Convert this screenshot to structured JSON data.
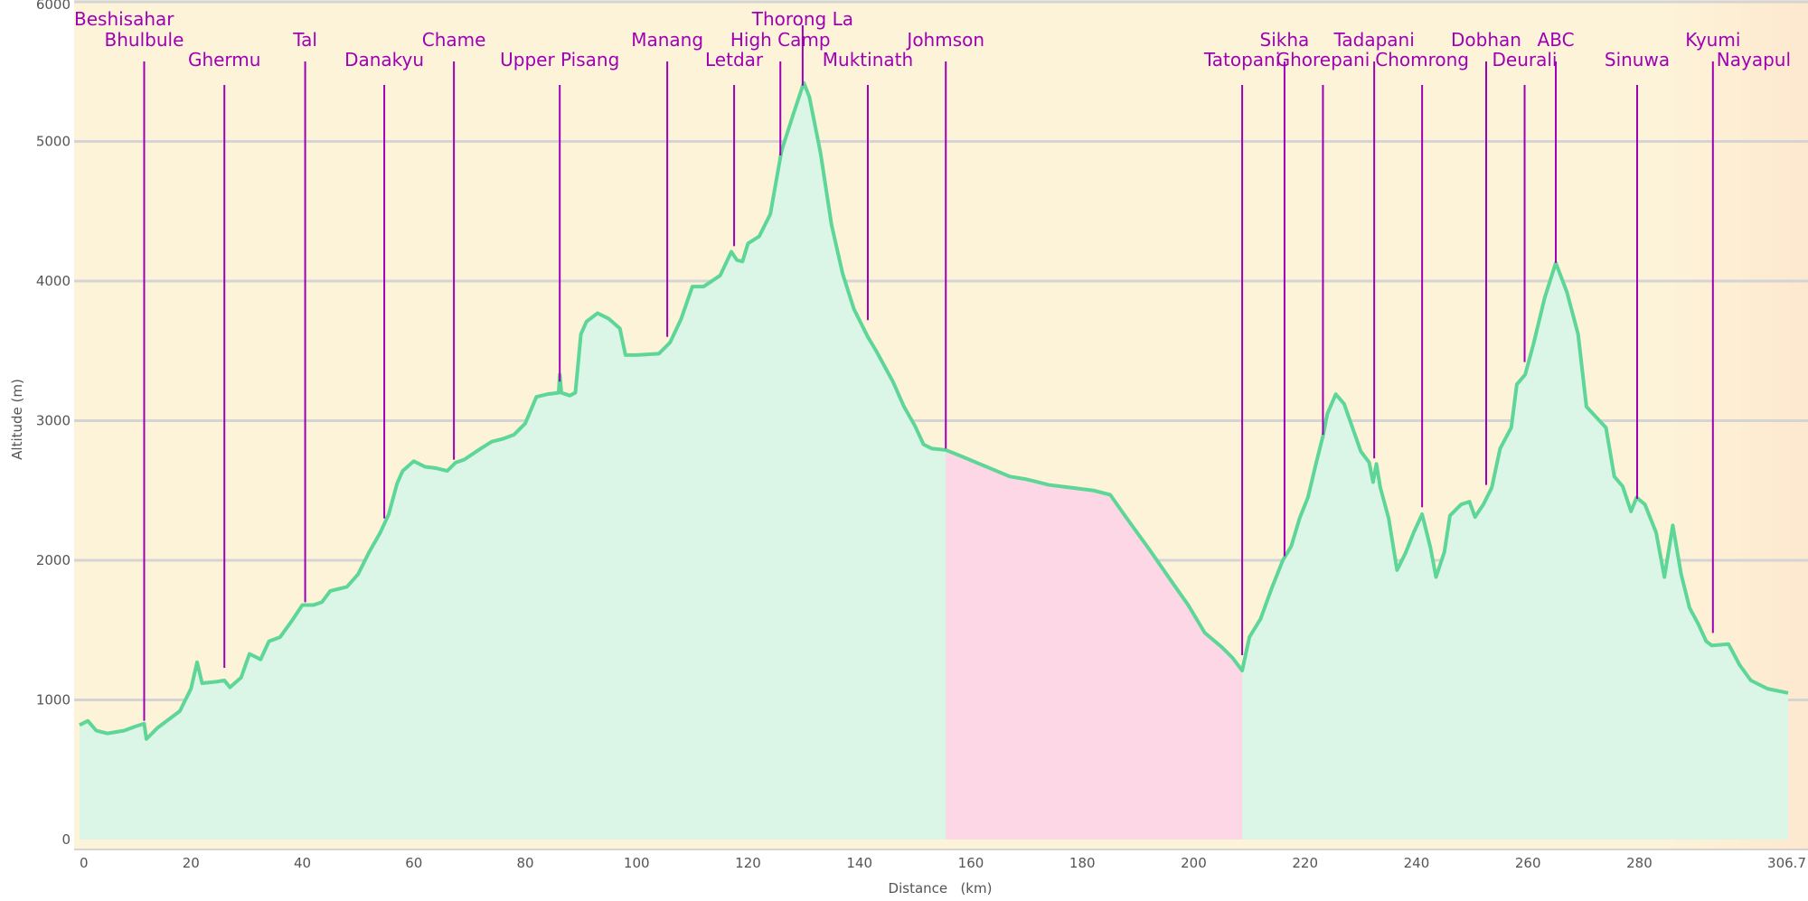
{
  "chart_data": {
    "type": "area",
    "title": "",
    "xlabel": "Distance   (km)",
    "ylabel": "Altitude (m)",
    "xlim": [
      0,
      306.7
    ],
    "ylim": [
      0,
      6000
    ],
    "x_ticks": [
      "0",
      "20",
      "40",
      "60",
      "80",
      "100",
      "120",
      "140",
      "160",
      "180",
      "200",
      "220",
      "240",
      "260",
      "280",
      "306.7"
    ],
    "x_tick_values": [
      0,
      20,
      40,
      60,
      80,
      100,
      120,
      140,
      160,
      180,
      200,
      220,
      240,
      260,
      280,
      306.7
    ],
    "y_ticks": [
      "0",
      "1000",
      "2000",
      "3000",
      "4000",
      "5000",
      "6000"
    ],
    "y_tick_values": [
      0,
      1000,
      2000,
      3000,
      4000,
      5000,
      6000
    ],
    "grid": true,
    "colors": {
      "background": "#fdf3d8",
      "background_end": "#fde8cf",
      "profile_line": "#5dd698",
      "profile_fill": "#dbf6e7",
      "highlight_fill": "#fdd7e6",
      "waypoint": "#a000b4",
      "grid": "#d4d4d4",
      "tick_text": "#555555"
    },
    "highlight_range": [
      155.5,
      208.7
    ],
    "profile": [
      [
        0,
        820
      ],
      [
        1.5,
        850
      ],
      [
        3,
        780
      ],
      [
        5,
        760
      ],
      [
        8,
        780
      ],
      [
        10,
        810
      ],
      [
        11.6,
        830
      ],
      [
        12,
        720
      ],
      [
        14,
        800
      ],
      [
        16,
        860
      ],
      [
        18,
        920
      ],
      [
        20,
        1080
      ],
      [
        21.1,
        1270
      ],
      [
        22,
        1120
      ],
      [
        24.5,
        1130
      ],
      [
        26,
        1140
      ],
      [
        27,
        1090
      ],
      [
        29,
        1160
      ],
      [
        30.5,
        1330
      ],
      [
        32.5,
        1290
      ],
      [
        34,
        1420
      ],
      [
        36,
        1450
      ],
      [
        38,
        1560
      ],
      [
        40,
        1680
      ],
      [
        42,
        1680
      ],
      [
        43.5,
        1700
      ],
      [
        45,
        1780
      ],
      [
        48,
        1810
      ],
      [
        50,
        1900
      ],
      [
        52,
        2060
      ],
      [
        54,
        2200
      ],
      [
        55.5,
        2330
      ],
      [
        57,
        2550
      ],
      [
        58,
        2640
      ],
      [
        60,
        2710
      ],
      [
        62,
        2670
      ],
      [
        64,
        2660
      ],
      [
        66,
        2640
      ],
      [
        67.5,
        2700
      ],
      [
        69,
        2720
      ],
      [
        72,
        2800
      ],
      [
        74,
        2850
      ],
      [
        76,
        2870
      ],
      [
        78,
        2900
      ],
      [
        80,
        2980
      ],
      [
        82,
        3170
      ],
      [
        84,
        3190
      ],
      [
        86,
        3200
      ],
      [
        86.2,
        3330
      ],
      [
        86.5,
        3200
      ],
      [
        88,
        3180
      ],
      [
        89,
        3200
      ],
      [
        90,
        3620
      ],
      [
        91,
        3710
      ],
      [
        93,
        3770
      ],
      [
        95,
        3730
      ],
      [
        97,
        3660
      ],
      [
        98,
        3470
      ],
      [
        100,
        3470
      ],
      [
        104,
        3480
      ],
      [
        106,
        3560
      ],
      [
        108,
        3730
      ],
      [
        110,
        3960
      ],
      [
        112,
        3960
      ],
      [
        115,
        4040
      ],
      [
        117,
        4210
      ],
      [
        118,
        4150
      ],
      [
        119,
        4140
      ],
      [
        120,
        4270
      ],
      [
        122,
        4320
      ],
      [
        124,
        4480
      ],
      [
        126,
        4930
      ],
      [
        128,
        5180
      ],
      [
        130,
        5420
      ],
      [
        131,
        5320
      ],
      [
        133,
        4920
      ],
      [
        135,
        4400
      ],
      [
        137,
        4050
      ],
      [
        139,
        3800
      ],
      [
        141.5,
        3600
      ],
      [
        143,
        3500
      ],
      [
        146,
        3280
      ],
      [
        148,
        3100
      ],
      [
        150,
        2960
      ],
      [
        151.5,
        2830
      ],
      [
        153,
        2800
      ],
      [
        155.5,
        2790
      ],
      [
        158,
        2750
      ],
      [
        161,
        2700
      ],
      [
        164,
        2650
      ],
      [
        167,
        2600
      ],
      [
        170,
        2580
      ],
      [
        174,
        2540
      ],
      [
        178,
        2520
      ],
      [
        182,
        2500
      ],
      [
        185,
        2470
      ],
      [
        188,
        2300
      ],
      [
        192,
        2080
      ],
      [
        196,
        1850
      ],
      [
        199,
        1680
      ],
      [
        202,
        1480
      ],
      [
        205,
        1380
      ],
      [
        207,
        1300
      ],
      [
        208.7,
        1210
      ],
      [
        210,
        1450
      ],
      [
        212,
        1580
      ],
      [
        214,
        1800
      ],
      [
        216,
        2000
      ],
      [
        217.5,
        2100
      ],
      [
        219,
        2300
      ],
      [
        220.5,
        2450
      ],
      [
        222,
        2700
      ],
      [
        223.2,
        2890
      ],
      [
        224,
        3050
      ],
      [
        225.5,
        3190
      ],
      [
        227,
        3120
      ],
      [
        228.5,
        2950
      ],
      [
        230,
        2780
      ],
      [
        231.5,
        2700
      ],
      [
        232.2,
        2560
      ],
      [
        232.8,
        2690
      ],
      [
        233.5,
        2520
      ],
      [
        235,
        2300
      ],
      [
        236.5,
        1930
      ],
      [
        238,
        2050
      ],
      [
        239.5,
        2200
      ],
      [
        241,
        2330
      ],
      [
        242.5,
        2090
      ],
      [
        243.5,
        1880
      ],
      [
        245,
        2060
      ],
      [
        246,
        2320
      ],
      [
        248,
        2400
      ],
      [
        249.5,
        2420
      ],
      [
        250.5,
        2310
      ],
      [
        252,
        2400
      ],
      [
        253.5,
        2520
      ],
      [
        255,
        2800
      ],
      [
        257,
        2950
      ],
      [
        258,
        3260
      ],
      [
        259.5,
        3330
      ],
      [
        261,
        3550
      ],
      [
        263,
        3880
      ],
      [
        265,
        4130
      ],
      [
        267,
        3920
      ],
      [
        269,
        3620
      ],
      [
        270.5,
        3100
      ],
      [
        274,
        2950
      ],
      [
        275.5,
        2600
      ],
      [
        277,
        2530
      ],
      [
        278.5,
        2350
      ],
      [
        279.5,
        2450
      ],
      [
        281,
        2400
      ],
      [
        283,
        2200
      ],
      [
        284.5,
        1880
      ],
      [
        286,
        2250
      ],
      [
        287.5,
        1900
      ],
      [
        289,
        1660
      ],
      [
        290.5,
        1550
      ],
      [
        292,
        1420
      ],
      [
        293,
        1390
      ],
      [
        296,
        1400
      ],
      [
        298,
        1250
      ],
      [
        300,
        1140
      ],
      [
        303,
        1080
      ],
      [
        306.7,
        1050
      ]
    ],
    "waypoints": [
      {
        "name": "Beshisahar",
        "x": 0,
        "row": 0,
        "anchor": "start",
        "line": false
      },
      {
        "name": "Bhulbule",
        "x": 11.6,
        "row": 1,
        "anchor": "middle",
        "line": true,
        "alt": 850
      },
      {
        "name": "Ghermu",
        "x": 26,
        "row": 2,
        "anchor": "middle",
        "line": true,
        "alt": 1230
      },
      {
        "name": "Tal",
        "x": 40.5,
        "row": 1,
        "anchor": "middle",
        "line": true,
        "alt": 1700
      },
      {
        "name": "Danakyu",
        "x": 54.7,
        "row": 2,
        "anchor": "middle",
        "line": true,
        "alt": 2300
      },
      {
        "name": "Chame",
        "x": 67.2,
        "row": 1,
        "anchor": "middle",
        "line": true,
        "alt": 2720
      },
      {
        "name": "Upper Pisang",
        "x": 86.2,
        "row": 2,
        "anchor": "middle",
        "line": true,
        "alt": 3280
      },
      {
        "name": "Manang",
        "x": 105.5,
        "row": 1,
        "anchor": "middle",
        "line": true,
        "alt": 3600
      },
      {
        "name": "Letdar",
        "x": 117.5,
        "row": 2,
        "anchor": "middle",
        "line": true,
        "alt": 4250
      },
      {
        "name": "High Camp",
        "x": 125.8,
        "row": 1,
        "anchor": "middle",
        "line": true,
        "alt": 4900
      },
      {
        "name": "Thorong La",
        "x": 129.8,
        "row": 0,
        "anchor": "middle",
        "line": true,
        "alt": 5400
      },
      {
        "name": "Muktinath",
        "x": 141.5,
        "row": 2,
        "anchor": "middle",
        "line": true,
        "alt": 3720
      },
      {
        "name": "Johmson",
        "x": 155.5,
        "row": 1,
        "anchor": "middle",
        "line": true,
        "alt": 2800
      },
      {
        "name": "Tatopani",
        "x": 208.7,
        "row": 2,
        "anchor": "middle",
        "line": true,
        "alt": 1320
      },
      {
        "name": "Sikha",
        "x": 216.3,
        "row": 1,
        "anchor": "middle",
        "line": true,
        "alt": 2030
      },
      {
        "name": "Ghorepani",
        "x": 223.2,
        "row": 2,
        "anchor": "middle",
        "line": true,
        "alt": 2900
      },
      {
        "name": "Tadapani",
        "x": 232.4,
        "row": 1,
        "anchor": "middle",
        "line": true,
        "alt": 2730
      },
      {
        "name": "Chomrong",
        "x": 241,
        "row": 2,
        "anchor": "middle",
        "line": true,
        "alt": 2380
      },
      {
        "name": "Dobhan",
        "x": 252.5,
        "row": 1,
        "anchor": "middle",
        "line": true,
        "alt": 2540
      },
      {
        "name": "Deurali",
        "x": 259.4,
        "row": 2,
        "anchor": "middle",
        "line": true,
        "alt": 3420
      },
      {
        "name": "ABC",
        "x": 265,
        "row": 1,
        "anchor": "middle",
        "line": true,
        "alt": 4130
      },
      {
        "name": "Sinuwa",
        "x": 279.6,
        "row": 2,
        "anchor": "middle",
        "line": true,
        "alt": 2440
      },
      {
        "name": "Kyumi",
        "x": 293.2,
        "row": 1,
        "anchor": "middle",
        "line": true,
        "alt": 1480
      },
      {
        "name": "Nayapul",
        "x": 293.2,
        "row": 2,
        "anchor": "start",
        "line": false
      }
    ]
  }
}
